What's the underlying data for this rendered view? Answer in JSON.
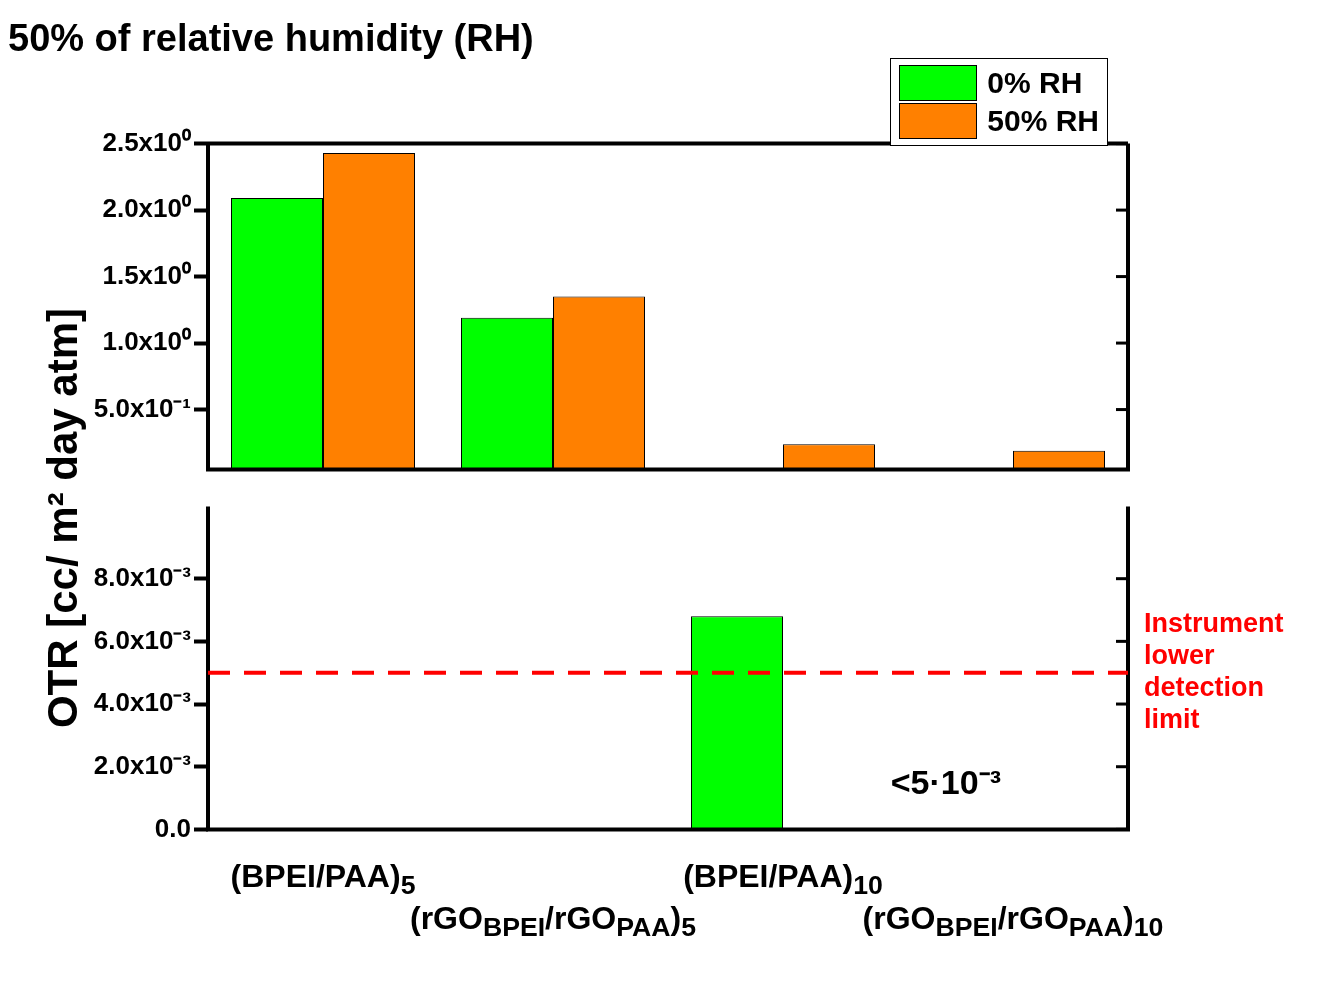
{
  "chart_data": [
    {
      "type": "bar",
      "title": "50% of relative humidity (RH)",
      "ylabel": "OTR [cc/ m² day atm]",
      "categories": [
        null,
        null,
        null,
        null
      ],
      "series": [
        {
          "name": "0% RH",
          "color": "#00ff00",
          "values": [
            2.09,
            1.19,
            null,
            null
          ]
        },
        {
          "name": "50% RH",
          "color": "#ff8000",
          "values": [
            2.43,
            1.35,
            0.24,
            0.19
          ]
        }
      ],
      "ylim": [
        0.05,
        2.5
      ],
      "yticks": [
        {
          "value": 0.5,
          "label": "5.0x10⁻¹"
        },
        {
          "value": 1,
          "label": "1.0x10⁰"
        },
        {
          "value": 1.5,
          "label": "1.5x10⁰"
        },
        {
          "value": 2,
          "label": "2.0x10⁰"
        },
        {
          "value": 2.5,
          "label": "2.5x10⁰"
        }
      ],
      "legend": "top right",
      "grid": false,
      "tick_labels": "y"
    },
    {
      "type": "bar",
      "categories": [
        "(BPEI/PAA)$_{5}$",
        "(rGO$_{BPEI}$/rGO$_{PAA}$)$_{5}$",
        "(BPEI/PAA)$_{10}$",
        "(rGO$_{BPEI}$/rGO$_{PAA}$)$_{10}$"
      ],
      "series": [
        {
          "color": "#00ff00",
          "values": [
            null,
            null,
            0.0068,
            null
          ]
        },
        {
          "color": "#ff8000",
          "values": [
            null,
            null,
            null,
            null
          ]
        }
      ],
      "ylim": [
        0,
        0.0103
      ],
      "yticks": [
        {
          "value": 0,
          "label": "0.0"
        },
        {
          "value": 0.002,
          "label": "2.0x10⁻³"
        },
        {
          "value": 0.004,
          "label": "4.0x10⁻³"
        },
        {
          "value": 0.006,
          "label": "6.0x10⁻³"
        },
        {
          "value": 0.008,
          "label": "8.0x10⁻³"
        }
      ],
      "ref_lines": [
        {
          "axis": "y",
          "value": 0.005,
          "label": "Instrument lower detection limit",
          "color": "#ff0000",
          "line_style": "dashed"
        }
      ],
      "annotations": [
        "<5·10⁻³"
      ],
      "grid": false
    }
  ]
}
